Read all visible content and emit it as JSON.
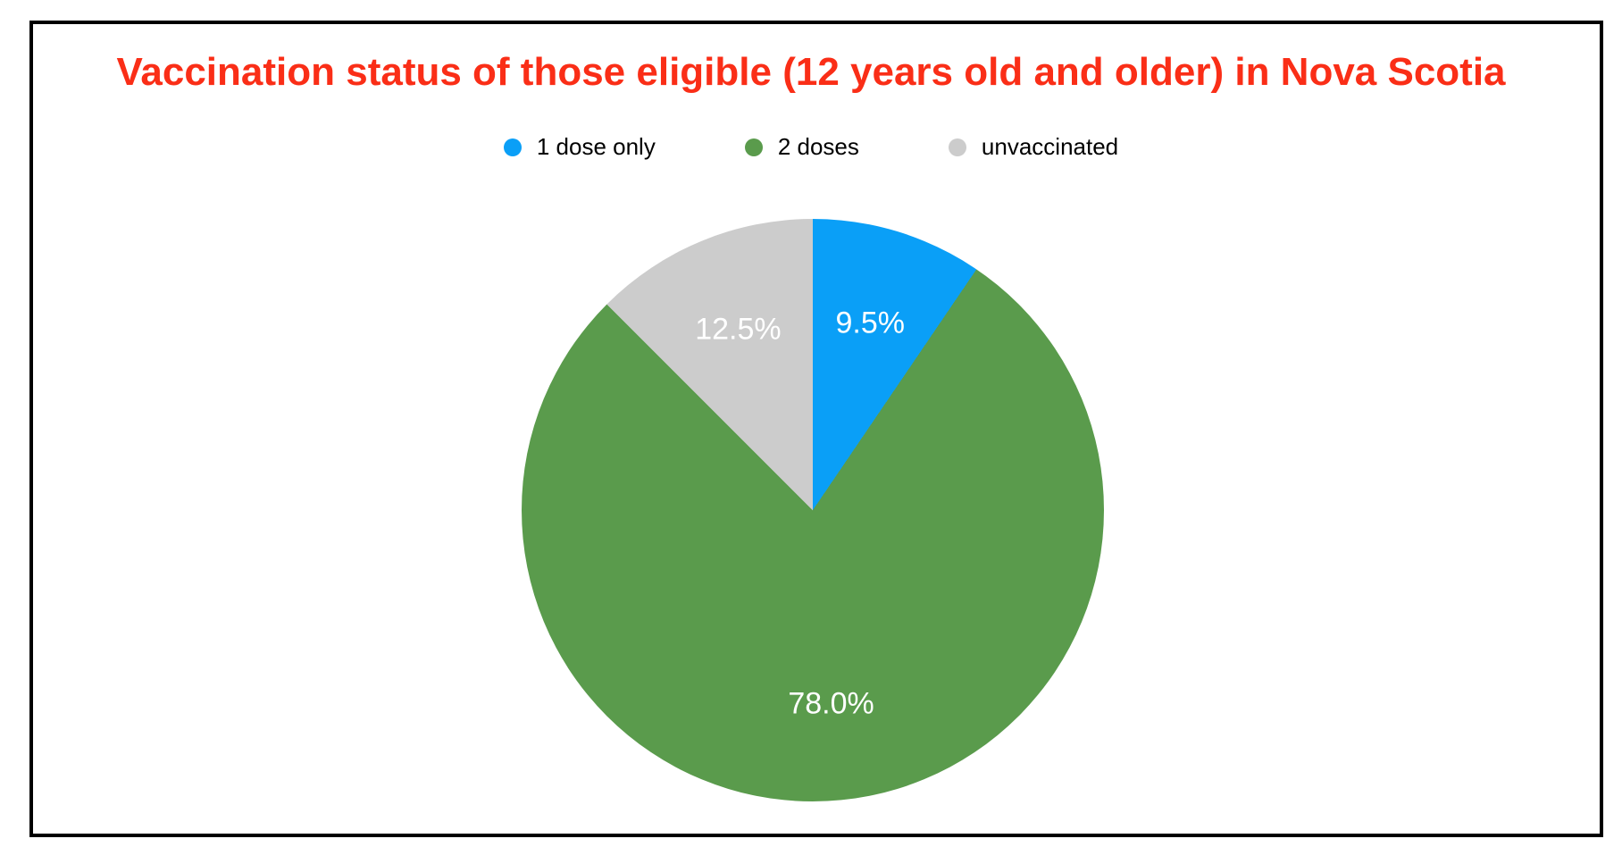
{
  "title": {
    "text": "Vaccination status of those eligible (12 years old and older) in Nova Scotia",
    "color": "#fa2e17"
  },
  "legend": {
    "items": [
      {
        "label": "1 dose only",
        "color": "#0a9ff7"
      },
      {
        "label": "2 doses",
        "color": "#5a9b4c"
      },
      {
        "label": "unvaccinated",
        "color": "#cccccc"
      }
    ]
  },
  "chart_data": {
    "type": "pie",
    "title": "Vaccination status of those eligible (12 years old and older) in Nova Scotia",
    "categories": [
      "1 dose only",
      "2 doses",
      "unvaccinated"
    ],
    "values": [
      9.5,
      78.0,
      12.5
    ],
    "labels": [
      "9.5%",
      "78.0%",
      "12.5%"
    ],
    "colors": [
      "#0a9ff7",
      "#5a9b4c",
      "#cccccc"
    ],
    "unit": "%",
    "start_angle_deg": 0,
    "direction": "clockwise",
    "label_color": "#ffffff",
    "label_radius_fraction": 0.67,
    "legend_position": "top",
    "background_color": "#ffffff",
    "frame_color": "#000000"
  }
}
